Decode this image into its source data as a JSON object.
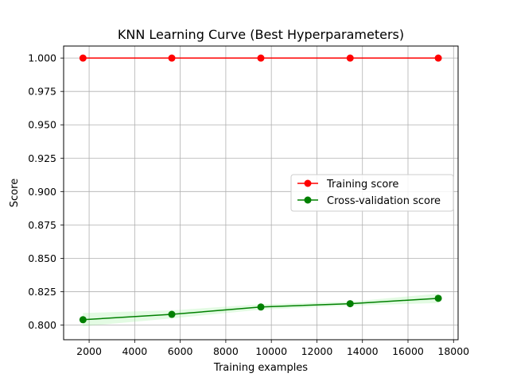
{
  "chart_data": {
    "type": "line",
    "title": "KNN Learning Curve (Best Hyperparameters)",
    "xlabel": "Training examples",
    "ylabel": "Score",
    "xlim": [
      880,
      18200
    ],
    "ylim": [
      0.789,
      1.009
    ],
    "xticks": [
      2000,
      4000,
      6000,
      8000,
      10000,
      12000,
      14000,
      16000,
      18000
    ],
    "yticks": [
      0.8,
      0.825,
      0.85,
      0.875,
      0.9,
      0.925,
      0.95,
      0.975,
      1.0
    ],
    "xtick_labels": [
      "2000",
      "4000",
      "6000",
      "8000",
      "10000",
      "12000",
      "14000",
      "16000",
      "18000"
    ],
    "ytick_labels": [
      "0.800",
      "0.825",
      "0.850",
      "0.875",
      "0.900",
      "0.925",
      "0.950",
      "0.975",
      "1.000"
    ],
    "grid": true,
    "legend_position": "center-right",
    "x": [
      1730,
      5630,
      9540,
      13460,
      17330
    ],
    "series": [
      {
        "name": "Training score",
        "color": "#ff0000",
        "values": [
          1.0,
          1.0,
          1.0,
          1.0,
          1.0
        ],
        "band_lower": [
          1.0,
          1.0,
          1.0,
          1.0,
          1.0
        ],
        "band_upper": [
          1.0,
          1.0,
          1.0,
          1.0,
          1.0
        ]
      },
      {
        "name": "Cross-validation score",
        "color": "#008000",
        "band_color": "#90ee90",
        "values": [
          0.804,
          0.808,
          0.8135,
          0.816,
          0.82
        ],
        "band_lower": [
          0.799,
          0.805,
          0.8115,
          0.8145,
          0.8165
        ],
        "band_upper": [
          0.809,
          0.811,
          0.8155,
          0.8175,
          0.8235
        ]
      }
    ]
  }
}
